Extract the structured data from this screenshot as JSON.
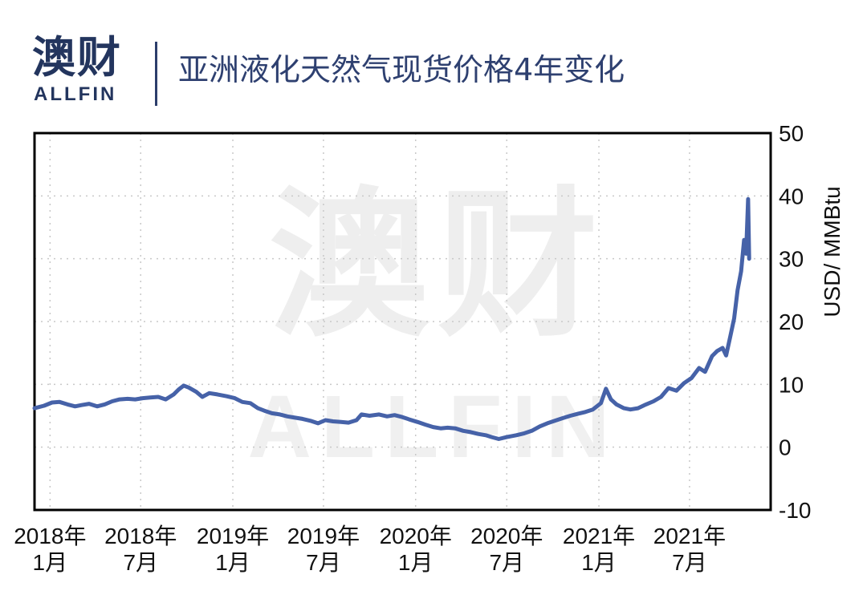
{
  "brand": {
    "logo_cn": "澳财",
    "logo_en": "ALLFIN",
    "accent": "#23355e",
    "mark_color": "#e0245e"
  },
  "chart_data": {
    "type": "line",
    "title": "亚洲液化天然气现货价格4年变化",
    "xlabel": "",
    "ylabel": "USD/ MMBtu",
    "ylim": [
      -10,
      50
    ],
    "yticks": [
      -10,
      0,
      10,
      20,
      30,
      40,
      50
    ],
    "xlim": [
      "2017-12-01",
      "2021-12-10"
    ],
    "xticks": [
      {
        "date": "2018-01-01",
        "line1": "2018年",
        "line2": "1月"
      },
      {
        "date": "2018-07-01",
        "line1": "2018年",
        "line2": "7月"
      },
      {
        "date": "2019-01-01",
        "line1": "2019年",
        "line2": "1月"
      },
      {
        "date": "2019-07-01",
        "line1": "2019年",
        "line2": "7月"
      },
      {
        "date": "2020-01-01",
        "line1": "2020年",
        "line2": "1月"
      },
      {
        "date": "2020-07-01",
        "line1": "2020年",
        "line2": "7月"
      },
      {
        "date": "2021-01-01",
        "line1": "2021年",
        "line2": "1月"
      },
      {
        "date": "2021-07-01",
        "line1": "2021年",
        "line2": "7月"
      }
    ],
    "grid": true,
    "line_color": "#4662a8",
    "series": [
      {
        "name": "",
        "points": [
          [
            "2017-12-01",
            6.2
          ],
          [
            "2017-12-20",
            6.6
          ],
          [
            "2018-01-05",
            7.1
          ],
          [
            "2018-01-20",
            7.2
          ],
          [
            "2018-02-05",
            6.8
          ],
          [
            "2018-02-20",
            6.5
          ],
          [
            "2018-03-05",
            6.7
          ],
          [
            "2018-03-20",
            6.9
          ],
          [
            "2018-04-05",
            6.5
          ],
          [
            "2018-04-20",
            6.8
          ],
          [
            "2018-05-05",
            7.3
          ],
          [
            "2018-05-20",
            7.6
          ],
          [
            "2018-06-05",
            7.7
          ],
          [
            "2018-06-20",
            7.6
          ],
          [
            "2018-07-05",
            7.8
          ],
          [
            "2018-07-20",
            7.9
          ],
          [
            "2018-08-05",
            8.0
          ],
          [
            "2018-08-20",
            7.6
          ],
          [
            "2018-09-05",
            8.4
          ],
          [
            "2018-09-15",
            9.2
          ],
          [
            "2018-09-25",
            9.8
          ],
          [
            "2018-10-05",
            9.5
          ],
          [
            "2018-10-20",
            8.8
          ],
          [
            "2018-11-01",
            8.0
          ],
          [
            "2018-11-15",
            8.6
          ],
          [
            "2018-12-01",
            8.4
          ],
          [
            "2018-12-20",
            8.1
          ],
          [
            "2019-01-05",
            7.8
          ],
          [
            "2019-01-20",
            7.2
          ],
          [
            "2019-02-05",
            7.0
          ],
          [
            "2019-02-20",
            6.2
          ],
          [
            "2019-03-05",
            5.8
          ],
          [
            "2019-03-20",
            5.4
          ],
          [
            "2019-04-05",
            5.2
          ],
          [
            "2019-04-20",
            4.9
          ],
          [
            "2019-05-05",
            4.7
          ],
          [
            "2019-05-20",
            4.5
          ],
          [
            "2019-06-05",
            4.2
          ],
          [
            "2019-06-20",
            3.8
          ],
          [
            "2019-07-05",
            4.3
          ],
          [
            "2019-07-20",
            4.1
          ],
          [
            "2019-08-05",
            4.0
          ],
          [
            "2019-08-20",
            3.9
          ],
          [
            "2019-09-05",
            4.3
          ],
          [
            "2019-09-15",
            5.2
          ],
          [
            "2019-10-01",
            5.0
          ],
          [
            "2019-10-20",
            5.2
          ],
          [
            "2019-11-05",
            4.9
          ],
          [
            "2019-11-20",
            5.1
          ],
          [
            "2019-12-05",
            4.8
          ],
          [
            "2019-12-20",
            4.4
          ],
          [
            "2020-01-05",
            4.0
          ],
          [
            "2020-01-20",
            3.6
          ],
          [
            "2020-02-05",
            3.2
          ],
          [
            "2020-02-20",
            3.0
          ],
          [
            "2020-03-05",
            3.1
          ],
          [
            "2020-03-20",
            3.0
          ],
          [
            "2020-04-05",
            2.6
          ],
          [
            "2020-04-20",
            2.4
          ],
          [
            "2020-05-05",
            2.1
          ],
          [
            "2020-05-20",
            1.9
          ],
          [
            "2020-06-01",
            1.6
          ],
          [
            "2020-06-15",
            1.3
          ],
          [
            "2020-07-01",
            1.6
          ],
          [
            "2020-07-20",
            1.9
          ],
          [
            "2020-08-05",
            2.2
          ],
          [
            "2020-08-20",
            2.6
          ],
          [
            "2020-09-05",
            3.3
          ],
          [
            "2020-09-20",
            3.8
          ],
          [
            "2020-10-05",
            4.2
          ],
          [
            "2020-10-20",
            4.6
          ],
          [
            "2020-11-05",
            5.0
          ],
          [
            "2020-11-20",
            5.3
          ],
          [
            "2020-12-05",
            5.6
          ],
          [
            "2020-12-20",
            6.0
          ],
          [
            "2021-01-05",
            7.0
          ],
          [
            "2021-01-15",
            9.3
          ],
          [
            "2021-01-25",
            7.6
          ],
          [
            "2021-02-05",
            6.8
          ],
          [
            "2021-02-20",
            6.2
          ],
          [
            "2021-03-05",
            6.0
          ],
          [
            "2021-03-20",
            6.2
          ],
          [
            "2021-04-05",
            6.8
          ],
          [
            "2021-04-20",
            7.3
          ],
          [
            "2021-05-05",
            8.0
          ],
          [
            "2021-05-20",
            9.4
          ],
          [
            "2021-06-05",
            9.0
          ],
          [
            "2021-06-20",
            10.2
          ],
          [
            "2021-07-05",
            11.0
          ],
          [
            "2021-07-20",
            12.6
          ],
          [
            "2021-08-01",
            12.0
          ],
          [
            "2021-08-15",
            14.5
          ],
          [
            "2021-08-25",
            15.3
          ],
          [
            "2021-09-05",
            15.8
          ],
          [
            "2021-09-12",
            14.6
          ],
          [
            "2021-09-20",
            17.5
          ],
          [
            "2021-09-28",
            20.5
          ],
          [
            "2021-10-05",
            25.0
          ],
          [
            "2021-10-12",
            28.0
          ],
          [
            "2021-10-18",
            33.0
          ],
          [
            "2021-10-22",
            30.8
          ],
          [
            "2021-10-26",
            39.5
          ],
          [
            "2021-10-28",
            30.0
          ]
        ]
      }
    ]
  }
}
